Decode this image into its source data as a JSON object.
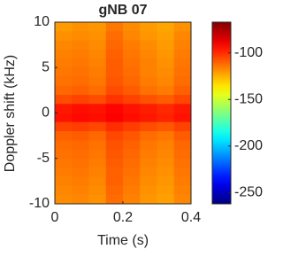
{
  "chart_data": {
    "type": "heatmap",
    "title": "gNB 07",
    "xlabel": "Time (s)",
    "ylabel": "Doppler shift (kHz)",
    "colormap": "jet",
    "x": [
      0.025,
      0.075,
      0.125,
      0.175,
      0.225,
      0.275,
      0.325,
      0.375
    ],
    "y": [
      9.5,
      8.5,
      7.5,
      6.5,
      5.5,
      4.5,
      3.5,
      2.5,
      1.5,
      0.5,
      -0.5,
      -1.5,
      -2.5,
      -3.5,
      -4.5,
      -5.5,
      -6.5,
      -7.5,
      -8.5,
      -9.5
    ],
    "z": [
      [
        -121,
        -119,
        -120,
        -114,
        -118,
        -121,
        -123,
        -119
      ],
      [
        -119,
        -118,
        -119,
        -112,
        -117,
        -120,
        -122,
        -117
      ],
      [
        -117,
        -116,
        -118,
        -111,
        -115,
        -118,
        -121,
        -116
      ],
      [
        -116,
        -115,
        -117,
        -110,
        -114,
        -117,
        -120,
        -115
      ],
      [
        -115,
        -114,
        -116,
        -109,
        -113,
        -116,
        -119,
        -114
      ],
      [
        -114,
        -113,
        -115,
        -109,
        -112,
        -116,
        -118,
        -113
      ],
      [
        -113,
        -112,
        -114,
        -108,
        -111,
        -115,
        -117,
        -112
      ],
      [
        -111,
        -110,
        -112,
        -106,
        -109,
        -113,
        -115,
        -110
      ],
      [
        -106,
        -104,
        -106,
        -101,
        -104,
        -107,
        -109,
        -105
      ],
      [
        -96,
        -94,
        -95,
        -92,
        -95,
        -97,
        -99,
        -96
      ],
      [
        -95,
        -93,
        -94,
        -91,
        -94,
        -96,
        -98,
        -95
      ],
      [
        -104,
        -103,
        -105,
        -100,
        -103,
        -106,
        -108,
        -104
      ],
      [
        -110,
        -109,
        -111,
        -105,
        -108,
        -112,
        -114,
        -109
      ],
      [
        -112,
        -111,
        -113,
        -107,
        -110,
        -114,
        -116,
        -111
      ],
      [
        -113,
        -112,
        -114,
        -108,
        -111,
        -115,
        -117,
        -112
      ],
      [
        -114,
        -113,
        -115,
        -109,
        -112,
        -116,
        -118,
        -113
      ],
      [
        -115,
        -114,
        -116,
        -110,
        -113,
        -117,
        -119,
        -114
      ],
      [
        -116,
        -115,
        -117,
        -110,
        -114,
        -118,
        -120,
        -115
      ],
      [
        -117,
        -116,
        -118,
        -111,
        -115,
        -119,
        -121,
        -116
      ],
      [
        -118,
        -117,
        -119,
        -112,
        -116,
        -120,
        -122,
        -117
      ]
    ],
    "xlim": [
      0,
      0.4
    ],
    "xticks": [
      0,
      0.2,
      0.4
    ],
    "ylim": [
      -10,
      10
    ],
    "yticks": [
      -10,
      -5,
      0,
      5,
      10
    ],
    "zlim": [
      -262,
      -67
    ],
    "zticks": [
      -100,
      -150,
      -200,
      -250
    ]
  }
}
